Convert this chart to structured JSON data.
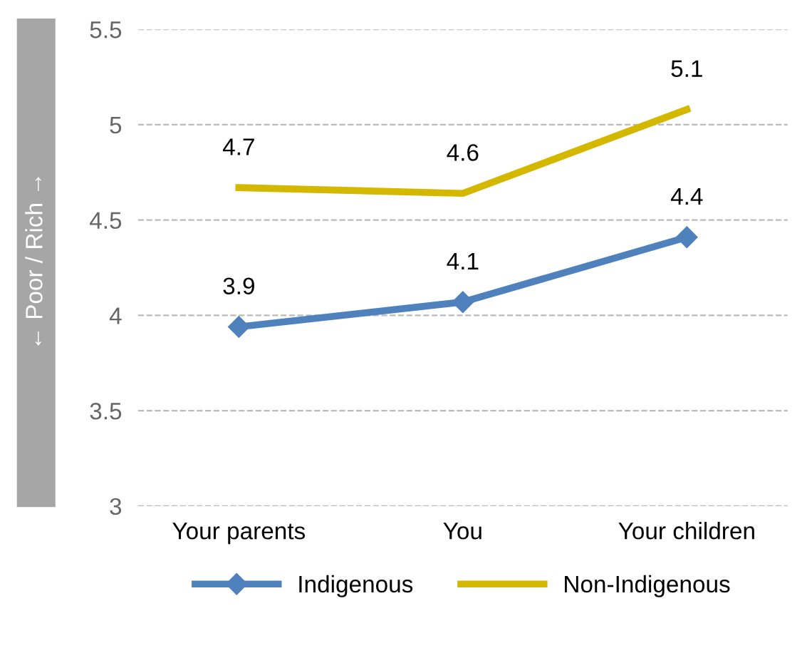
{
  "chart_data": {
    "type": "line",
    "ylabel": "← Poor / Rich →",
    "categories": [
      "Your parents",
      "You",
      "Your children"
    ],
    "series": [
      {
        "name": "Indigenous",
        "color": "#4f81bd",
        "values": [
          3.94,
          4.07,
          4.41
        ],
        "value_labels": [
          "3.9",
          "4.1",
          "4.4"
        ],
        "marker": "diamond"
      },
      {
        "name": "Non-Indigenous",
        "color": "#d4b800",
        "values": [
          4.67,
          4.64,
          5.08
        ],
        "value_labels": [
          "4.7",
          "4.6",
          "5.1"
        ],
        "marker": "none"
      }
    ],
    "ylim": [
      3,
      5.5
    ],
    "yticks": [
      3,
      3.5,
      4,
      4.5,
      5,
      5.5
    ],
    "grid": "y",
    "legend": "bottom"
  }
}
